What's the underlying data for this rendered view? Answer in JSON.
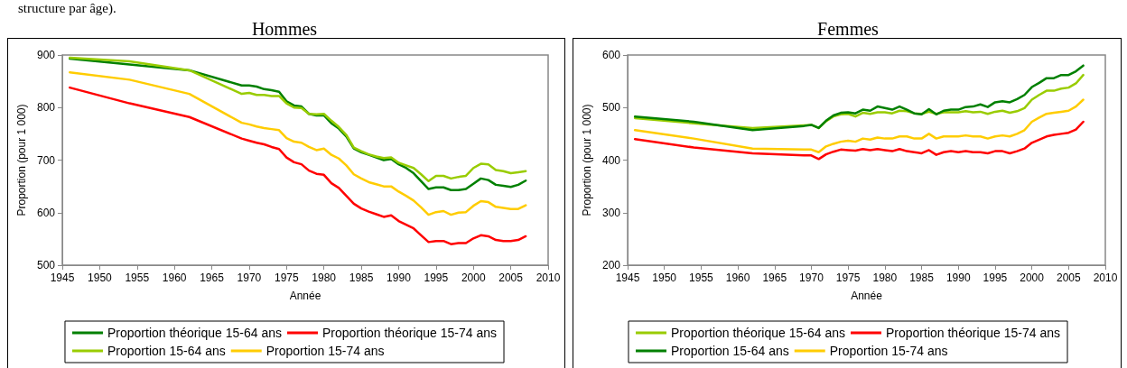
{
  "chart_data": [
    {
      "type": "line",
      "title": "Hommes",
      "xlabel": "Année",
      "ylabel": "Proportion (pour 1 000)",
      "annotations": [
        "structure par âge)."
      ],
      "legend": "bottom",
      "line_style": "solid",
      "xlim": [
        1945,
        2010
      ],
      "xticks": [
        1945,
        1950,
        1955,
        1960,
        1965,
        1970,
        1975,
        1980,
        1985,
        1990,
        1995,
        2000,
        2005,
        2010
      ],
      "ylim": [
        500,
        900
      ],
      "yticks": [
        500,
        600,
        700,
        800,
        900
      ],
      "x": [
        1946,
        1954,
        1962,
        1969,
        1970,
        1971,
        1972,
        1973,
        1974,
        1975,
        1976,
        1977,
        1978,
        1979,
        1980,
        1981,
        1982,
        1983,
        1984,
        1985,
        1986,
        1987,
        1988,
        1989,
        1990,
        1991,
        1992,
        1993,
        1994,
        1995,
        1996,
        1997,
        1998,
        1999,
        2000,
        2001,
        2002,
        2003,
        2004,
        2005,
        2006,
        2007
      ],
      "series": [
        {
          "name": "Proportion théorique 15-64 ans",
          "color": "#008000",
          "values": [
            893,
            882,
            871,
            842,
            842,
            840,
            835,
            833,
            830,
            812,
            804,
            802,
            788,
            785,
            785,
            770,
            760,
            745,
            722,
            715,
            710,
            705,
            700,
            702,
            692,
            685,
            675,
            660,
            645,
            648,
            648,
            643,
            643,
            645,
            655,
            665,
            662,
            653,
            651,
            649,
            653,
            661
          ]
        },
        {
          "name": "Proportion théorique 15-74 ans",
          "color": "#ff0000",
          "values": [
            838,
            808,
            782,
            741,
            737,
            733,
            730,
            725,
            721,
            705,
            696,
            692,
            680,
            674,
            672,
            656,
            647,
            632,
            617,
            608,
            602,
            597,
            592,
            595,
            584,
            577,
            570,
            557,
            544,
            546,
            546,
            540,
            542,
            542,
            551,
            557,
            555,
            548,
            546,
            546,
            548,
            555
          ]
        },
        {
          "name": "Proportion 15-64 ans",
          "color": "#99cc00",
          "values": [
            895,
            888,
            871,
            826,
            828,
            824,
            824,
            822,
            822,
            808,
            800,
            799,
            788,
            787,
            788,
            775,
            763,
            748,
            724,
            717,
            711,
            707,
            704,
            705,
            695,
            690,
            685,
            673,
            660,
            670,
            670,
            665,
            668,
            670,
            685,
            693,
            692,
            681,
            679,
            675,
            677,
            679
          ]
        },
        {
          "name": "Proportion 15-74 ans",
          "color": "#ffcc00",
          "values": [
            867,
            853,
            826,
            771,
            768,
            764,
            761,
            759,
            757,
            742,
            735,
            733,
            725,
            719,
            722,
            710,
            703,
            690,
            673,
            665,
            658,
            654,
            650,
            650,
            640,
            632,
            623,
            610,
            596,
            601,
            603,
            596,
            600,
            601,
            613,
            622,
            620,
            611,
            609,
            607,
            607,
            614
          ]
        }
      ]
    },
    {
      "type": "line",
      "title": "Femmes",
      "xlabel": "Année",
      "ylabel": "Proportion (pour 1 000)",
      "legend": "bottom",
      "line_style": "solid",
      "xlim": [
        1945,
        2010
      ],
      "xticks": [
        1945,
        1950,
        1955,
        1960,
        1965,
        1970,
        1975,
        1980,
        1985,
        1990,
        1995,
        2000,
        2005,
        2010
      ],
      "ylim": [
        200,
        600
      ],
      "yticks": [
        200,
        300,
        400,
        500,
        600
      ],
      "x": [
        1946,
        1954,
        1962,
        1969,
        1970,
        1971,
        1972,
        1973,
        1974,
        1975,
        1976,
        1977,
        1978,
        1979,
        1980,
        1981,
        1982,
        1983,
        1984,
        1985,
        1986,
        1987,
        1988,
        1989,
        1990,
        1991,
        1992,
        1993,
        1994,
        1995,
        1996,
        1997,
        1998,
        1999,
        2000,
        2001,
        2002,
        2003,
        2004,
        2005,
        2006,
        2007
      ],
      "series": [
        {
          "name": "Proportion théorique 15-64 ans",
          "color": "#99cc00",
          "values": [
            480,
            470,
            461,
            466,
            467,
            461,
            474,
            483,
            487,
            488,
            483,
            490,
            488,
            491,
            491,
            489,
            494,
            493,
            489,
            488,
            492,
            488,
            491,
            491,
            491,
            493,
            491,
            492,
            488,
            492,
            494,
            490,
            493,
            499,
            515,
            524,
            532,
            532,
            536,
            538,
            546,
            562
          ]
        },
        {
          "name": "Proportion théorique 15-74 ans",
          "color": "#ff0000",
          "values": [
            440,
            424,
            413,
            409,
            409,
            402,
            411,
            416,
            420,
            419,
            418,
            421,
            419,
            421,
            419,
            417,
            421,
            417,
            415,
            413,
            419,
            410,
            415,
            417,
            415,
            417,
            415,
            415,
            413,
            417,
            417,
            413,
            417,
            422,
            433,
            439,
            445,
            448,
            450,
            452,
            458,
            473
          ]
        },
        {
          "name": "Proportion 15-64 ans",
          "color": "#008000",
          "values": [
            483,
            473,
            457,
            465,
            467,
            461,
            475,
            485,
            490,
            491,
            489,
            496,
            494,
            502,
            499,
            496,
            502,
            496,
            489,
            487,
            497,
            487,
            494,
            496,
            496,
            501,
            502,
            506,
            501,
            510,
            512,
            510,
            516,
            524,
            539,
            547,
            556,
            556,
            562,
            562,
            569,
            580
          ]
        },
        {
          "name": "Proportion 15-74 ans",
          "color": "#ffcc00",
          "values": [
            457,
            441,
            422,
            420,
            420,
            415,
            426,
            431,
            435,
            437,
            435,
            441,
            439,
            443,
            441,
            441,
            445,
            445,
            441,
            441,
            450,
            441,
            445,
            445,
            445,
            447,
            445,
            445,
            441,
            445,
            447,
            445,
            450,
            457,
            473,
            481,
            488,
            490,
            492,
            494,
            502,
            515
          ]
        }
      ]
    }
  ]
}
